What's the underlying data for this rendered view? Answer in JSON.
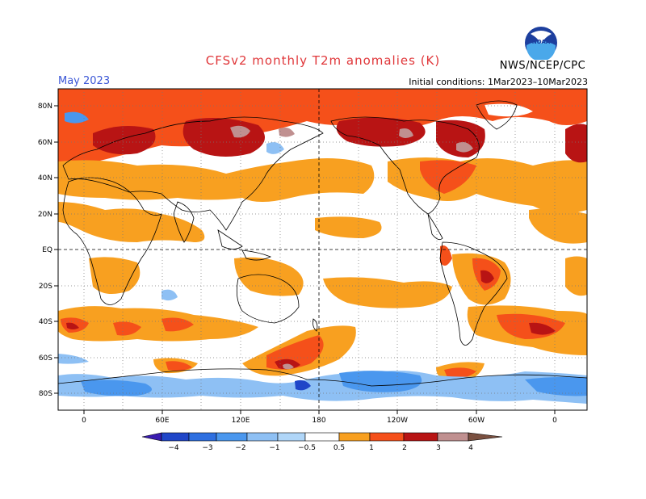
{
  "header": {
    "title": "CFSv2 monthly T2m anomalies (K)",
    "month": "May 2023",
    "initial_conditions": "Initial conditions: 1Mar2023–10Mar2023",
    "agency": "NWS/NCEP/CPC",
    "logo_text": "NOAA"
  },
  "map": {
    "lat_labels": [
      "80N",
      "60N",
      "40N",
      "20N",
      "EQ",
      "20S",
      "40S",
      "60S",
      "80S"
    ],
    "lon_labels": [
      "0",
      "60E",
      "120E",
      "180",
      "120W",
      "60W",
      "0"
    ],
    "projection": "cylindrical, centered on 180",
    "grid": "dotted graticule every 30 deg longitude / 20 deg latitude, dashed equator and dateline"
  },
  "legend": {
    "labels": [
      "−4",
      "−3",
      "−2",
      "−1",
      "−0.5",
      "0.5",
      "1",
      "2",
      "3",
      "4"
    ],
    "bins": [
      {
        "range": "< -4",
        "color": "#3a1cb0"
      },
      {
        "range": "-4 to -3",
        "color": "#2046c8"
      },
      {
        "range": "-3 to -2",
        "color": "#2e6fe0"
      },
      {
        "range": "-2 to -1",
        "color": "#4a97ee"
      },
      {
        "range": "-1 to -0.5",
        "color": "#8ec0f4"
      },
      {
        "range": "-0.5 to 0.5",
        "color": "#ffffff"
      },
      {
        "range": "0.5 to 1",
        "color": "#f8a020"
      },
      {
        "range": "1 to 2",
        "color": "#f5501a"
      },
      {
        "range": "2 to 3",
        "color": "#b81414"
      },
      {
        "range": "3 to 4",
        "color": "#c09090"
      },
      {
        "range": "> 4",
        "color": "#7a5040"
      }
    ]
  }
}
